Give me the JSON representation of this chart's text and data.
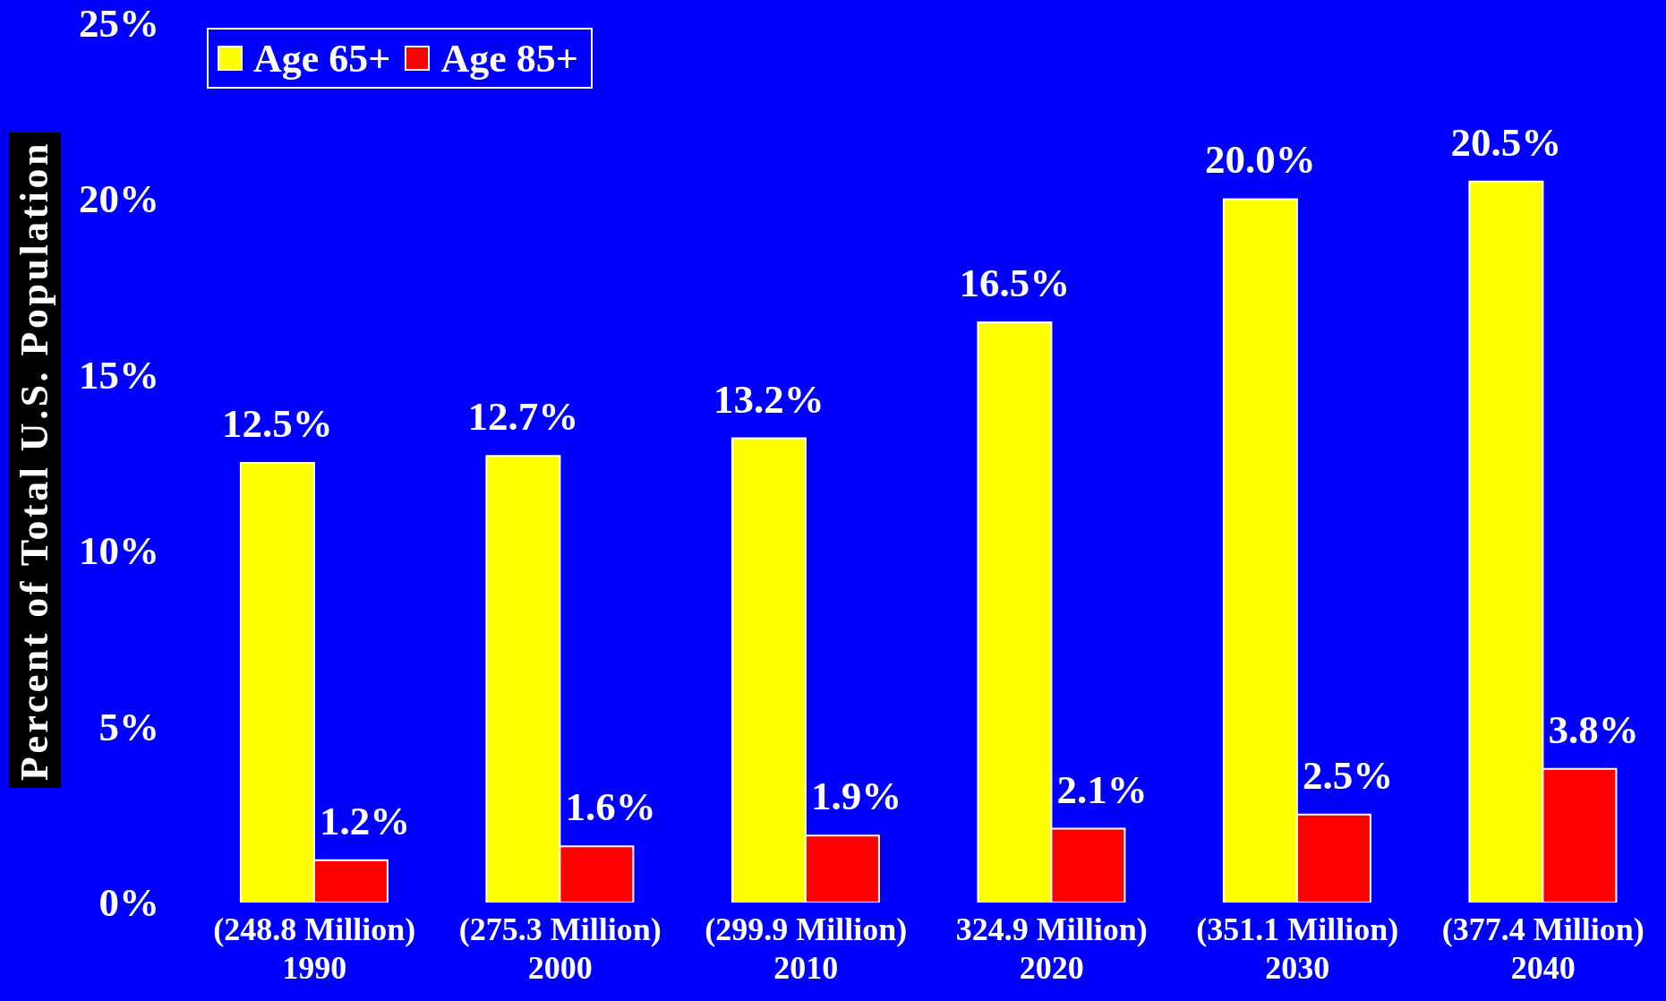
{
  "chart_data": {
    "type": "bar",
    "ylabel": "Percent of Total U.S. Population",
    "categories": [
      "(248.8 Million)\n1990",
      "(275.3 Million)\n2000",
      "(299.9 Million)\n2010",
      "324.9 Million)\n2020",
      "(351.1 Million)\n2030",
      "(377.4 Million)\n2040"
    ],
    "series": [
      {
        "name": "Age 65+",
        "color": "#ffff00",
        "values": [
          12.5,
          12.7,
          13.2,
          16.5,
          20.0,
          20.5
        ],
        "value_labels": [
          "12.5%",
          "12.7%",
          "13.2%",
          "16.5%",
          "20.0%",
          "20.5%"
        ]
      },
      {
        "name": "Age 85+",
        "color": "#ff0000",
        "values": [
          1.2,
          1.6,
          1.9,
          2.1,
          2.5,
          3.8
        ],
        "value_labels": [
          "1.2%",
          "1.6%",
          "1.9%",
          "2.1%",
          "2.5%",
          "3.8%"
        ]
      }
    ],
    "ylim": [
      0,
      25
    ],
    "yticks": [
      {
        "value": 0,
        "label": "0%"
      },
      {
        "value": 5,
        "label": "5%"
      },
      {
        "value": 10,
        "label": "10%"
      },
      {
        "value": 15,
        "label": "15%"
      },
      {
        "value": 20,
        "label": "20%"
      },
      {
        "value": 25,
        "label": "25%"
      }
    ],
    "grid": false,
    "legend": "top left"
  }
}
